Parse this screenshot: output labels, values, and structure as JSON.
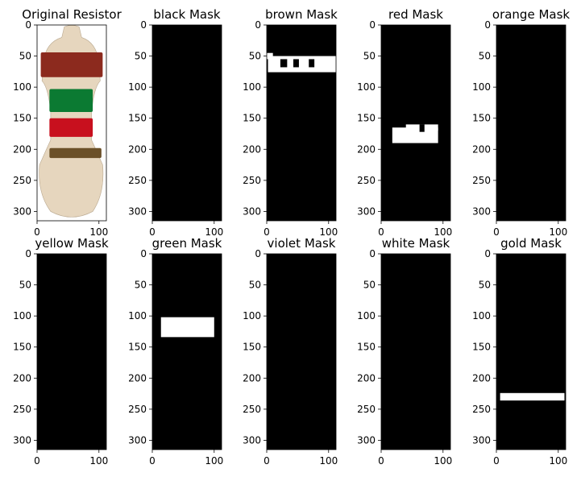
{
  "chart_data": {
    "type": "image_grid",
    "rows": 2,
    "columns": 5,
    "panels": [
      {
        "title": "Original Resistor",
        "kind": "photo",
        "bands": [
          {
            "color": "#8c2a1e",
            "y": [
              44,
              84
            ]
          },
          {
            "color": "#0b7a32",
            "y": [
              103,
              140
            ]
          },
          {
            "color": "#c8101e",
            "y": [
              150,
              180
            ]
          },
          {
            "color": "#6b5028",
            "y": [
              198,
              214
            ]
          }
        ]
      },
      {
        "title": "black Mask",
        "kind": "mask",
        "regions": []
      },
      {
        "title": "brown Mask",
        "kind": "mask",
        "regions": [
          {
            "x": [
              2,
              112
            ],
            "y": [
              50,
              76
            ]
          },
          {
            "x": [
              0,
              10
            ],
            "y": [
              45,
              55
            ]
          }
        ],
        "holes": [
          {
            "x": [
              22,
              33
            ],
            "y": [
              55,
              68
            ]
          },
          {
            "x": [
              43,
              52
            ],
            "y": [
              55,
              68
            ]
          },
          {
            "x": [
              68,
              77
            ],
            "y": [
              55,
              68
            ]
          }
        ]
      },
      {
        "title": "red Mask",
        "kind": "mask",
        "regions": [
          {
            "x": [
              18,
              92
            ],
            "y": [
              165,
              190
            ]
          },
          {
            "x": [
              40,
              92
            ],
            "y": [
              160,
              170
            ]
          }
        ],
        "holes": [
          {
            "x": [
              62,
              70
            ],
            "y": [
              160,
              172
            ]
          }
        ]
      },
      {
        "title": "orange Mask",
        "kind": "mask",
        "regions": []
      },
      {
        "title": "yellow Mask",
        "kind": "mask",
        "regions": []
      },
      {
        "title": "green Mask",
        "kind": "mask",
        "regions": [
          {
            "x": [
              14,
              100
            ],
            "y": [
              102,
              134
            ]
          }
        ],
        "holes": []
      },
      {
        "title": "violet Mask",
        "kind": "mask",
        "regions": []
      },
      {
        "title": "white Mask",
        "kind": "mask",
        "regions": []
      },
      {
        "title": "gold Mask",
        "kind": "mask",
        "regions": [
          {
            "x": [
              6,
              110
            ],
            "y": [
              224,
              236
            ]
          }
        ],
        "holes": []
      }
    ],
    "image_width": 112,
    "image_height": 315,
    "xlim": [
      0,
      112
    ],
    "ylim": [
      315,
      0
    ],
    "x_ticks": [
      "0",
      "100"
    ],
    "x_tick_values": [
      0,
      100
    ],
    "y_ticks": [
      "0",
      "50",
      "100",
      "150",
      "200",
      "250",
      "300"
    ],
    "y_tick_values": [
      0,
      50,
      100,
      150,
      200,
      250,
      300
    ],
    "colors": {
      "mask_bg": "#000000",
      "mask_fg": "#ffffff",
      "resistor_body": "#e6d6be"
    }
  }
}
